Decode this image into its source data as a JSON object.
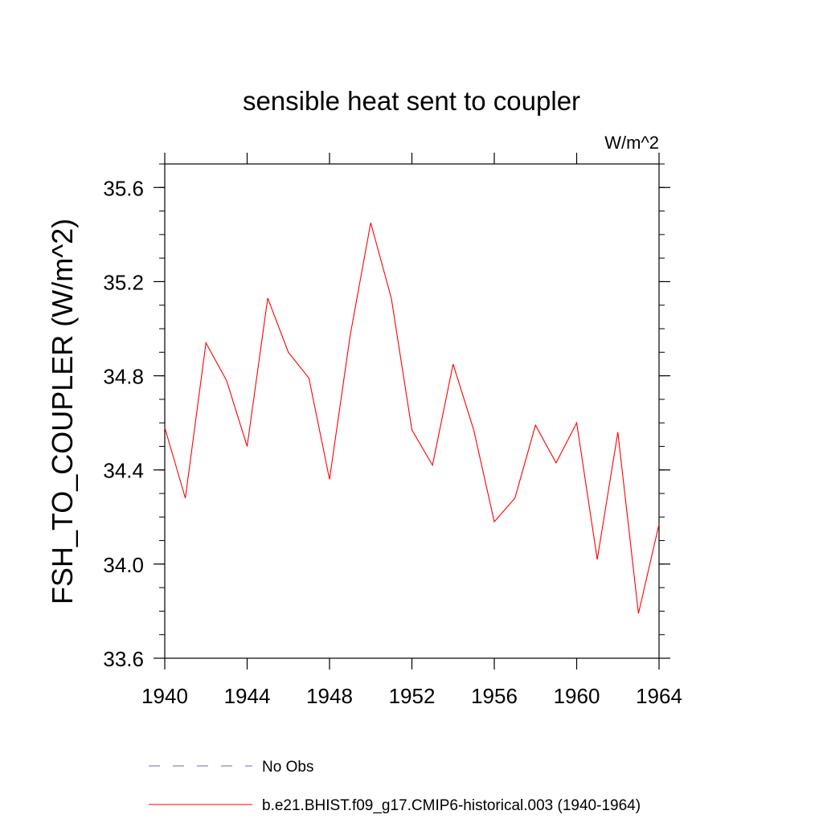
{
  "chart_data": {
    "type": "line",
    "title": "sensible heat sent to coupler",
    "units_label": "W/m^2",
    "ylabel": "FSH_TO_COUPLER  (W/m^2)",
    "xlabel": "",
    "xlim": [
      1940,
      1964
    ],
    "ylim": [
      33.6,
      35.7
    ],
    "x_ticks": [
      1940,
      1944,
      1948,
      1952,
      1956,
      1960,
      1964
    ],
    "x_tick_labels": [
      "1940",
      "1944",
      "1948",
      "1952",
      "1956",
      "1960",
      "1964"
    ],
    "y_ticks": [
      33.6,
      34.0,
      34.4,
      34.8,
      35.2,
      35.6
    ],
    "y_tick_labels": [
      "33.6",
      "34.0",
      "34.4",
      "34.8",
      "35.2",
      "35.6"
    ],
    "grid": false,
    "legend_position": "bottom",
    "series": [
      {
        "name": "b.e21.BHIST.f09_g17.CMIP6-historical.003 (1940-1964)",
        "color": "#ff0000",
        "style": "solid",
        "x": [
          1940,
          1941,
          1942,
          1943,
          1944,
          1945,
          1946,
          1947,
          1948,
          1949,
          1950,
          1951,
          1952,
          1953,
          1954,
          1955,
          1956,
          1957,
          1958,
          1959,
          1960,
          1961,
          1962,
          1963,
          1964
        ],
        "values": [
          34.58,
          34.28,
          34.94,
          34.78,
          34.5,
          35.13,
          34.9,
          34.79,
          34.36,
          34.97,
          35.45,
          35.13,
          34.57,
          34.42,
          34.85,
          34.57,
          34.18,
          34.28,
          34.59,
          34.43,
          34.6,
          34.02,
          34.56,
          33.79,
          34.17
        ]
      }
    ],
    "legend": [
      {
        "label": "No Obs",
        "color": "#6b6bb8",
        "style": "dashed"
      },
      {
        "label": "b.e21.BHIST.f09_g17.CMIP6-historical.003 (1940-1964)",
        "color": "#ff0000",
        "style": "solid"
      }
    ]
  }
}
